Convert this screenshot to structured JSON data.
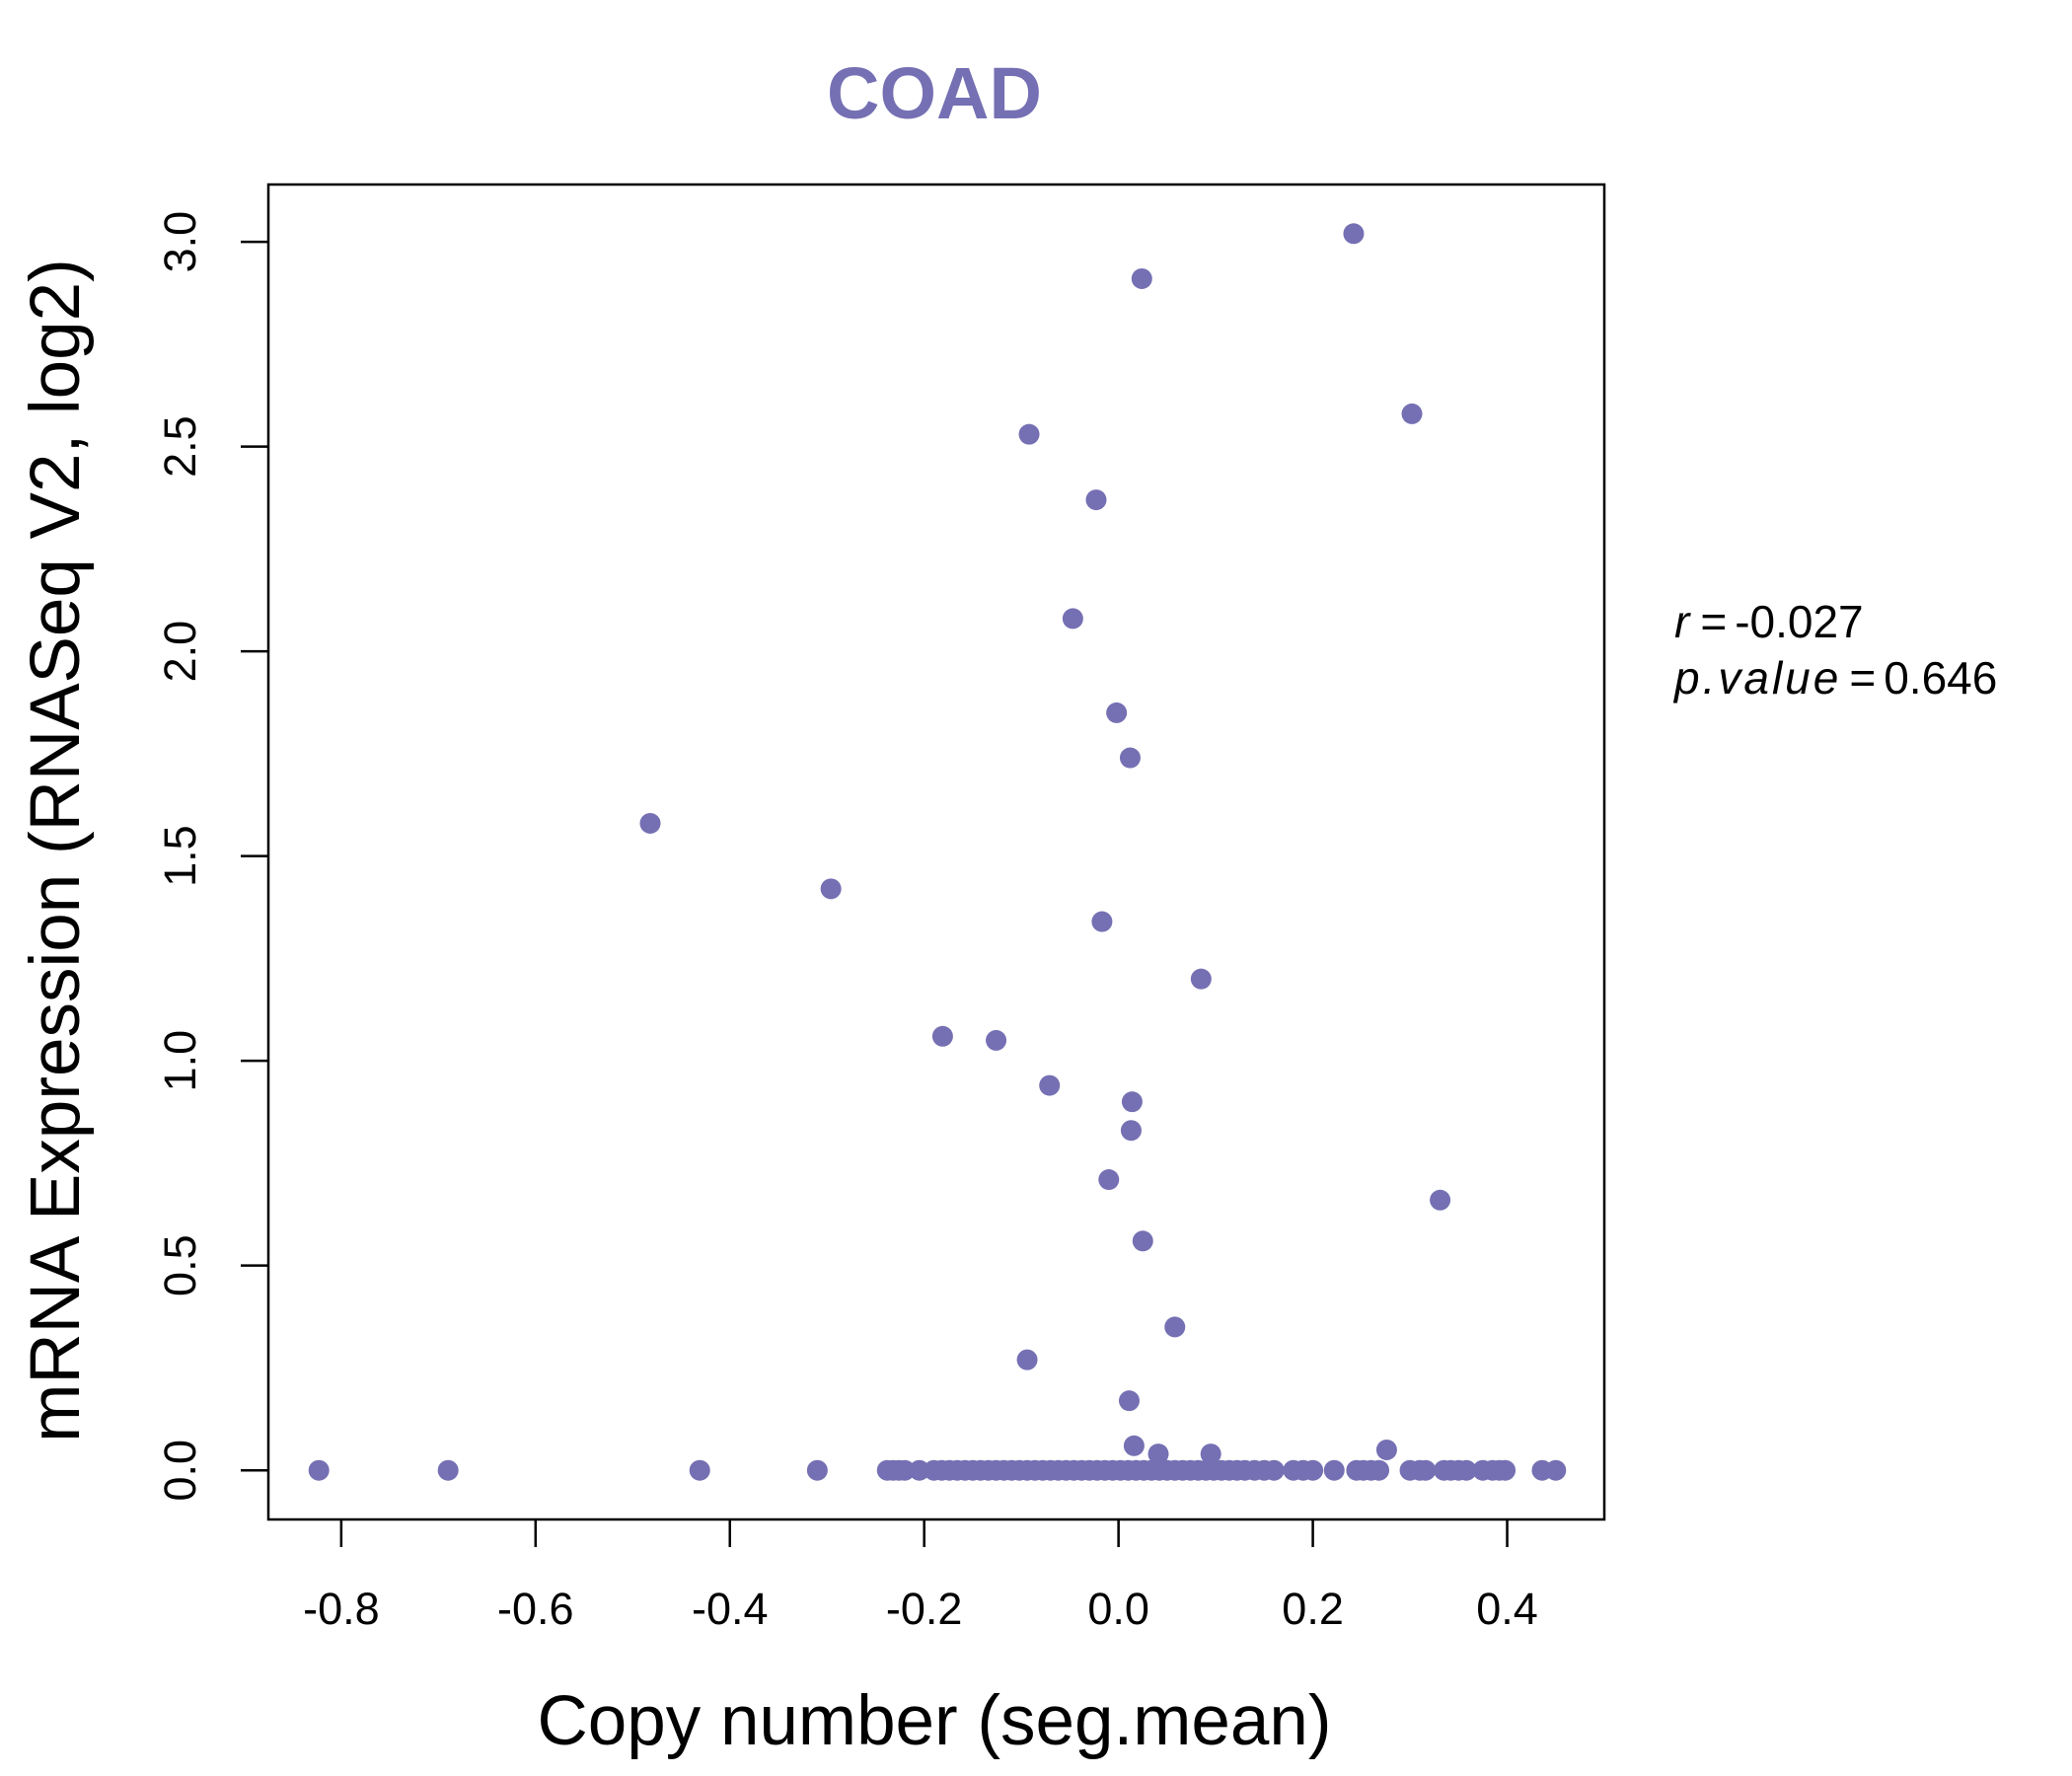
{
  "chart_data": {
    "type": "scatter",
    "title": "COAD",
    "xlabel": "Copy number (seg.mean)",
    "ylabel": "mRNA Expression (RNASeq V2, log2)",
    "xlim": [
      -0.875,
      0.5
    ],
    "ylim": [
      -0.12,
      3.14
    ],
    "x_ticks": [
      -0.8,
      -0.6,
      -0.4,
      -0.2,
      0.0,
      0.2,
      0.4
    ],
    "x_tick_labels": [
      "-0.8",
      "-0.6",
      "-0.4",
      "-0.2",
      "0.0",
      "0.2",
      "0.4"
    ],
    "y_ticks": [
      0.0,
      0.5,
      1.0,
      1.5,
      2.0,
      2.5,
      3.0
    ],
    "y_tick_labels": [
      "0.0",
      "0.5",
      "1.0",
      "1.5",
      "2.0",
      "2.5",
      "3.0"
    ],
    "grid": false,
    "marker_color": "#7570b3",
    "points": [
      {
        "x": 0.242,
        "y": 3.02
      },
      {
        "x": 0.024,
        "y": 2.91
      },
      {
        "x": 0.302,
        "y": 2.58
      },
      {
        "x": -0.092,
        "y": 2.53
      },
      {
        "x": -0.023,
        "y": 2.37
      },
      {
        "x": -0.047,
        "y": 2.08
      },
      {
        "x": -0.002,
        "y": 1.85
      },
      {
        "x": 0.012,
        "y": 1.74
      },
      {
        "x": -0.482,
        "y": 1.58
      },
      {
        "x": -0.296,
        "y": 1.42
      },
      {
        "x": -0.017,
        "y": 1.34
      },
      {
        "x": 0.085,
        "y": 1.2
      },
      {
        "x": -0.181,
        "y": 1.06
      },
      {
        "x": -0.126,
        "y": 1.05
      },
      {
        "x": -0.071,
        "y": 0.94
      },
      {
        "x": 0.014,
        "y": 0.9
      },
      {
        "x": 0.013,
        "y": 0.83
      },
      {
        "x": -0.01,
        "y": 0.71
      },
      {
        "x": 0.331,
        "y": 0.66
      },
      {
        "x": 0.025,
        "y": 0.56
      },
      {
        "x": 0.058,
        "y": 0.35
      },
      {
        "x": -0.094,
        "y": 0.27
      },
      {
        "x": 0.011,
        "y": 0.17
      },
      {
        "x": 0.276,
        "y": 0.05
      },
      {
        "x": 0.016,
        "y": 0.06
      },
      {
        "x": 0.041,
        "y": 0.04
      },
      {
        "x": 0.095,
        "y": 0.04
      },
      {
        "x": -0.823,
        "y": 0.0
      },
      {
        "x": -0.69,
        "y": 0.0
      },
      {
        "x": -0.431,
        "y": 0.0
      },
      {
        "x": -0.31,
        "y": 0.0
      },
      {
        "x": -0.238,
        "y": 0.0
      },
      {
        "x": -0.232,
        "y": 0.0
      },
      {
        "x": -0.226,
        "y": 0.0
      },
      {
        "x": -0.22,
        "y": 0.0
      },
      {
        "x": -0.205,
        "y": 0.0
      },
      {
        "x": -0.19,
        "y": 0.0
      },
      {
        "x": -0.182,
        "y": 0.0
      },
      {
        "x": -0.174,
        "y": 0.0
      },
      {
        "x": -0.166,
        "y": 0.0
      },
      {
        "x": -0.158,
        "y": 0.0
      },
      {
        "x": -0.15,
        "y": 0.0
      },
      {
        "x": -0.142,
        "y": 0.0
      },
      {
        "x": -0.134,
        "y": 0.0
      },
      {
        "x": -0.126,
        "y": 0.0
      },
      {
        "x": -0.118,
        "y": 0.0
      },
      {
        "x": -0.11,
        "y": 0.0
      },
      {
        "x": -0.102,
        "y": 0.0
      },
      {
        "x": -0.094,
        "y": 0.0
      },
      {
        "x": -0.086,
        "y": 0.0
      },
      {
        "x": -0.078,
        "y": 0.0
      },
      {
        "x": -0.07,
        "y": 0.0
      },
      {
        "x": -0.062,
        "y": 0.0
      },
      {
        "x": -0.054,
        "y": 0.0
      },
      {
        "x": -0.046,
        "y": 0.0
      },
      {
        "x": -0.038,
        "y": 0.0
      },
      {
        "x": -0.03,
        "y": 0.0
      },
      {
        "x": -0.022,
        "y": 0.0
      },
      {
        "x": -0.014,
        "y": 0.0
      },
      {
        "x": -0.006,
        "y": 0.0
      },
      {
        "x": 0.002,
        "y": 0.0
      },
      {
        "x": 0.01,
        "y": 0.0
      },
      {
        "x": 0.018,
        "y": 0.0
      },
      {
        "x": 0.026,
        "y": 0.0
      },
      {
        "x": 0.034,
        "y": 0.0
      },
      {
        "x": 0.042,
        "y": 0.0
      },
      {
        "x": 0.05,
        "y": 0.0
      },
      {
        "x": 0.058,
        "y": 0.0
      },
      {
        "x": 0.066,
        "y": 0.0
      },
      {
        "x": 0.074,
        "y": 0.0
      },
      {
        "x": 0.082,
        "y": 0.0
      },
      {
        "x": 0.09,
        "y": 0.0
      },
      {
        "x": 0.098,
        "y": 0.0
      },
      {
        "x": 0.106,
        "y": 0.0
      },
      {
        "x": 0.114,
        "y": 0.0
      },
      {
        "x": 0.122,
        "y": 0.0
      },
      {
        "x": 0.13,
        "y": 0.0
      },
      {
        "x": 0.14,
        "y": 0.0
      },
      {
        "x": 0.15,
        "y": 0.0
      },
      {
        "x": 0.16,
        "y": 0.0
      },
      {
        "x": 0.18,
        "y": 0.0
      },
      {
        "x": 0.19,
        "y": 0.0
      },
      {
        "x": 0.2,
        "y": 0.0
      },
      {
        "x": 0.222,
        "y": 0.0
      },
      {
        "x": 0.245,
        "y": 0.0
      },
      {
        "x": 0.252,
        "y": 0.0
      },
      {
        "x": 0.26,
        "y": 0.0
      },
      {
        "x": 0.268,
        "y": 0.0
      },
      {
        "x": 0.3,
        "y": 0.0
      },
      {
        "x": 0.31,
        "y": 0.0
      },
      {
        "x": 0.316,
        "y": 0.0
      },
      {
        "x": 0.335,
        "y": 0.0
      },
      {
        "x": 0.342,
        "y": 0.0
      },
      {
        "x": 0.35,
        "y": 0.0
      },
      {
        "x": 0.358,
        "y": 0.0
      },
      {
        "x": 0.375,
        "y": 0.0
      },
      {
        "x": 0.385,
        "y": 0.0
      },
      {
        "x": 0.392,
        "y": 0.0
      },
      {
        "x": 0.398,
        "y": 0.0
      },
      {
        "x": 0.436,
        "y": 0.0
      },
      {
        "x": 0.45,
        "y": 0.0
      }
    ]
  },
  "stats": {
    "r_label": "r",
    "r_value": "-0.027",
    "p_label": "p.value",
    "p_value": "0.646",
    "equals": "="
  }
}
